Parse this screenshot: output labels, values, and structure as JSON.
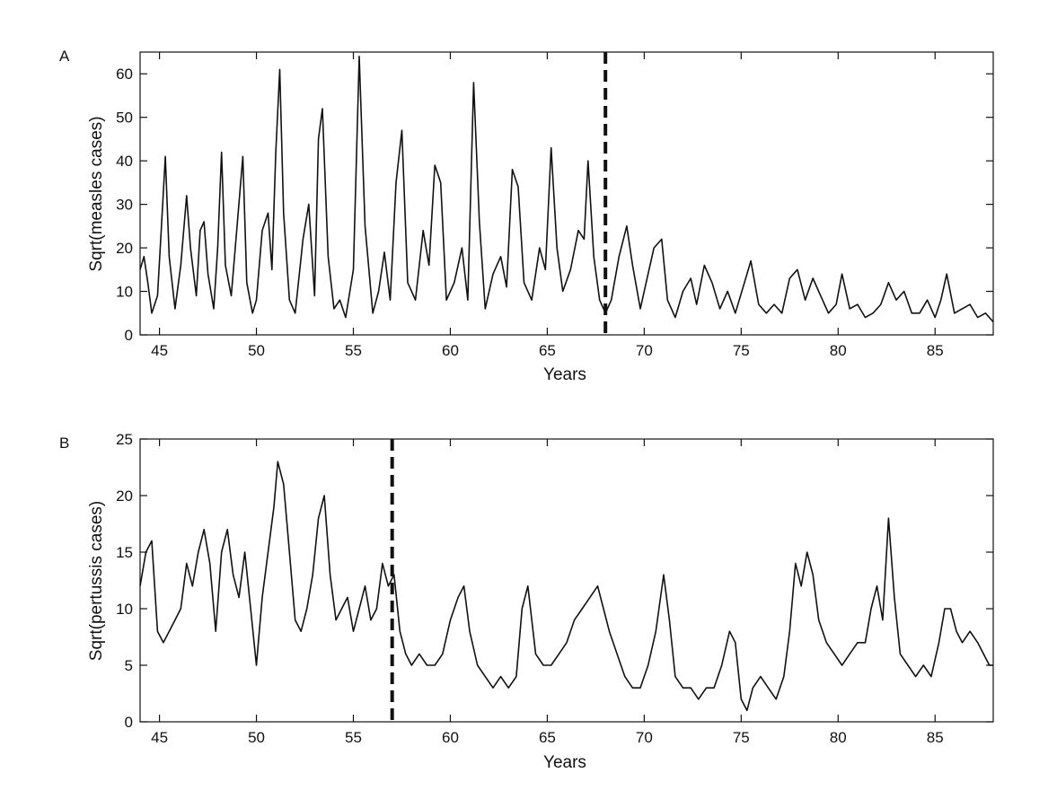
{
  "chart_data": [
    {
      "panel": "A",
      "type": "line",
      "xlabel": "Years",
      "ylabel": "Sqrt(measles cases)",
      "xlim": [
        44,
        88
      ],
      "ylim": [
        0,
        65
      ],
      "xticks": [
        45,
        50,
        55,
        60,
        65,
        70,
        75,
        80,
        85
      ],
      "yticks": [
        0,
        10,
        20,
        30,
        40,
        50,
        60
      ],
      "grid": false,
      "legend": "none",
      "vline": {
        "x": 68,
        "style": "dashed"
      },
      "series": [
        {
          "x": [
            44.0,
            44.2,
            44.4,
            44.6,
            44.9,
            45.1,
            45.3,
            45.5,
            45.8,
            46.1,
            46.4,
            46.6,
            46.9,
            47.1,
            47.3,
            47.5,
            47.8,
            48.0,
            48.2,
            48.4,
            48.7,
            49.0,
            49.3,
            49.5,
            49.8,
            50.0,
            50.3,
            50.6,
            50.8,
            51.0,
            51.2,
            51.4,
            51.7,
            52.0,
            52.4,
            52.7,
            53.0,
            53.2,
            53.4,
            53.7,
            54.0,
            54.3,
            54.6,
            55.0,
            55.3,
            55.6,
            56.0,
            56.3,
            56.6,
            56.9,
            57.2,
            57.5,
            57.8,
            58.2,
            58.6,
            58.9,
            59.2,
            59.5,
            59.8,
            60.2,
            60.6,
            60.9,
            61.2,
            61.5,
            61.8,
            62.2,
            62.6,
            62.9,
            63.2,
            63.5,
            63.8,
            64.2,
            64.6,
            64.9,
            65.2,
            65.5,
            65.8,
            66.2,
            66.6,
            66.9,
            67.1,
            67.4,
            67.7,
            68.0,
            68.3,
            68.7,
            69.1,
            69.4,
            69.8,
            70.1,
            70.5,
            70.9,
            71.2,
            71.6,
            72.0,
            72.4,
            72.7,
            73.1,
            73.5,
            73.9,
            74.3,
            74.7,
            75.1,
            75.5,
            75.9,
            76.3,
            76.7,
            77.1,
            77.5,
            77.9,
            78.3,
            78.7,
            79.1,
            79.5,
            79.9,
            80.2,
            80.6,
            81.0,
            81.4,
            81.8,
            82.2,
            82.6,
            83.0,
            83.4,
            83.8,
            84.2,
            84.6,
            85.0,
            85.3,
            85.6,
            86.0,
            86.4,
            86.8,
            87.2,
            87.6,
            88.0
          ],
          "y": [
            15,
            18,
            12,
            5,
            9,
            25,
            41,
            18,
            6,
            16,
            32,
            20,
            9,
            24,
            26,
            14,
            6,
            20,
            42,
            16,
            9,
            25,
            41,
            12,
            5,
            8,
            24,
            28,
            15,
            42,
            61,
            28,
            8,
            5,
            22,
            30,
            9,
            45,
            52,
            18,
            6,
            8,
            4,
            15,
            64,
            25,
            5,
            10,
            19,
            8,
            35,
            47,
            12,
            8,
            24,
            16,
            39,
            35,
            8,
            12,
            20,
            8,
            58,
            26,
            6,
            14,
            18,
            11,
            38,
            34,
            12,
            8,
            20,
            15,
            43,
            20,
            10,
            15,
            24,
            22,
            40,
            18,
            8,
            5,
            8,
            18,
            25,
            16,
            6,
            12,
            20,
            22,
            8,
            4,
            10,
            13,
            7,
            16,
            12,
            6,
            10,
            5,
            11,
            17,
            7,
            5,
            7,
            5,
            13,
            15,
            8,
            13,
            9,
            5,
            7,
            14,
            6,
            7,
            4,
            5,
            7,
            12,
            8,
            10,
            5,
            5,
            8,
            4,
            8,
            14,
            5,
            6,
            7,
            4,
            5,
            3
          ]
        }
      ]
    },
    {
      "panel": "B",
      "type": "line",
      "xlabel": "Years",
      "ylabel": "Sqrt(pertussis cases)",
      "xlim": [
        44,
        88
      ],
      "ylim": [
        0,
        25
      ],
      "xticks": [
        45,
        50,
        55,
        60,
        65,
        70,
        75,
        80,
        85
      ],
      "yticks": [
        0,
        5,
        10,
        15,
        20,
        25
      ],
      "grid": false,
      "legend": "none",
      "vline": {
        "x": 57,
        "style": "dashed"
      },
      "series": [
        {
          "x": [
            44.0,
            44.3,
            44.6,
            44.9,
            45.2,
            45.5,
            45.8,
            46.1,
            46.4,
            46.7,
            47.0,
            47.3,
            47.6,
            47.9,
            48.2,
            48.5,
            48.8,
            49.1,
            49.4,
            49.7,
            50.0,
            50.3,
            50.6,
            50.9,
            51.1,
            51.4,
            51.7,
            52.0,
            52.3,
            52.6,
            52.9,
            53.2,
            53.5,
            53.8,
            54.1,
            54.4,
            54.7,
            55.0,
            55.3,
            55.6,
            55.9,
            56.2,
            56.5,
            56.8,
            57.1,
            57.4,
            57.7,
            58.0,
            58.4,
            58.8,
            59.2,
            59.6,
            60.0,
            60.4,
            60.7,
            61.0,
            61.4,
            61.8,
            62.2,
            62.6,
            63.0,
            63.4,
            63.7,
            64.0,
            64.4,
            64.8,
            65.2,
            65.6,
            66.0,
            66.4,
            66.8,
            67.2,
            67.6,
            67.9,
            68.2,
            68.6,
            69.0,
            69.4,
            69.8,
            70.2,
            70.6,
            71.0,
            71.3,
            71.6,
            72.0,
            72.4,
            72.8,
            73.2,
            73.6,
            74.0,
            74.4,
            74.7,
            75.0,
            75.3,
            75.6,
            76.0,
            76.4,
            76.8,
            77.2,
            77.5,
            77.8,
            78.1,
            78.4,
            78.7,
            79.0,
            79.4,
            79.8,
            80.2,
            80.6,
            81.0,
            81.4,
            81.7,
            82.0,
            82.3,
            82.6,
            82.9,
            83.2,
            83.6,
            84.0,
            84.4,
            84.8,
            85.2,
            85.5,
            85.8,
            86.1,
            86.4,
            86.8,
            87.2,
            87.5,
            87.8,
            88.0
          ],
          "y": [
            12,
            15,
            16,
            8,
            7,
            8,
            9,
            10,
            14,
            12,
            15,
            17,
            14,
            8,
            15,
            17,
            13,
            11,
            15,
            10,
            5,
            11,
            15,
            19,
            23,
            21,
            15,
            9,
            8,
            10,
            13,
            18,
            20,
            13,
            9,
            10,
            11,
            8,
            10,
            12,
            9,
            10,
            14,
            12,
            13,
            8,
            6,
            5,
            6,
            5,
            5,
            6,
            9,
            11,
            12,
            8,
            5,
            4,
            3,
            4,
            3,
            4,
            10,
            12,
            6,
            5,
            5,
            6,
            7,
            9,
            10,
            11,
            12,
            10,
            8,
            6,
            4,
            3,
            3,
            5,
            8,
            13,
            9,
            4,
            3,
            3,
            2,
            3,
            3,
            5,
            8,
            7,
            2,
            1,
            3,
            4,
            3,
            2,
            4,
            8,
            14,
            12,
            15,
            13,
            9,
            7,
            6,
            5,
            6,
            7,
            7,
            10,
            12,
            9,
            18,
            11,
            6,
            5,
            4,
            5,
            4,
            7,
            10,
            10,
            8,
            7,
            8,
            7,
            6,
            5,
            5
          ]
        }
      ]
    }
  ],
  "panels": [
    {
      "letter": "A"
    },
    {
      "letter": "B"
    }
  ]
}
